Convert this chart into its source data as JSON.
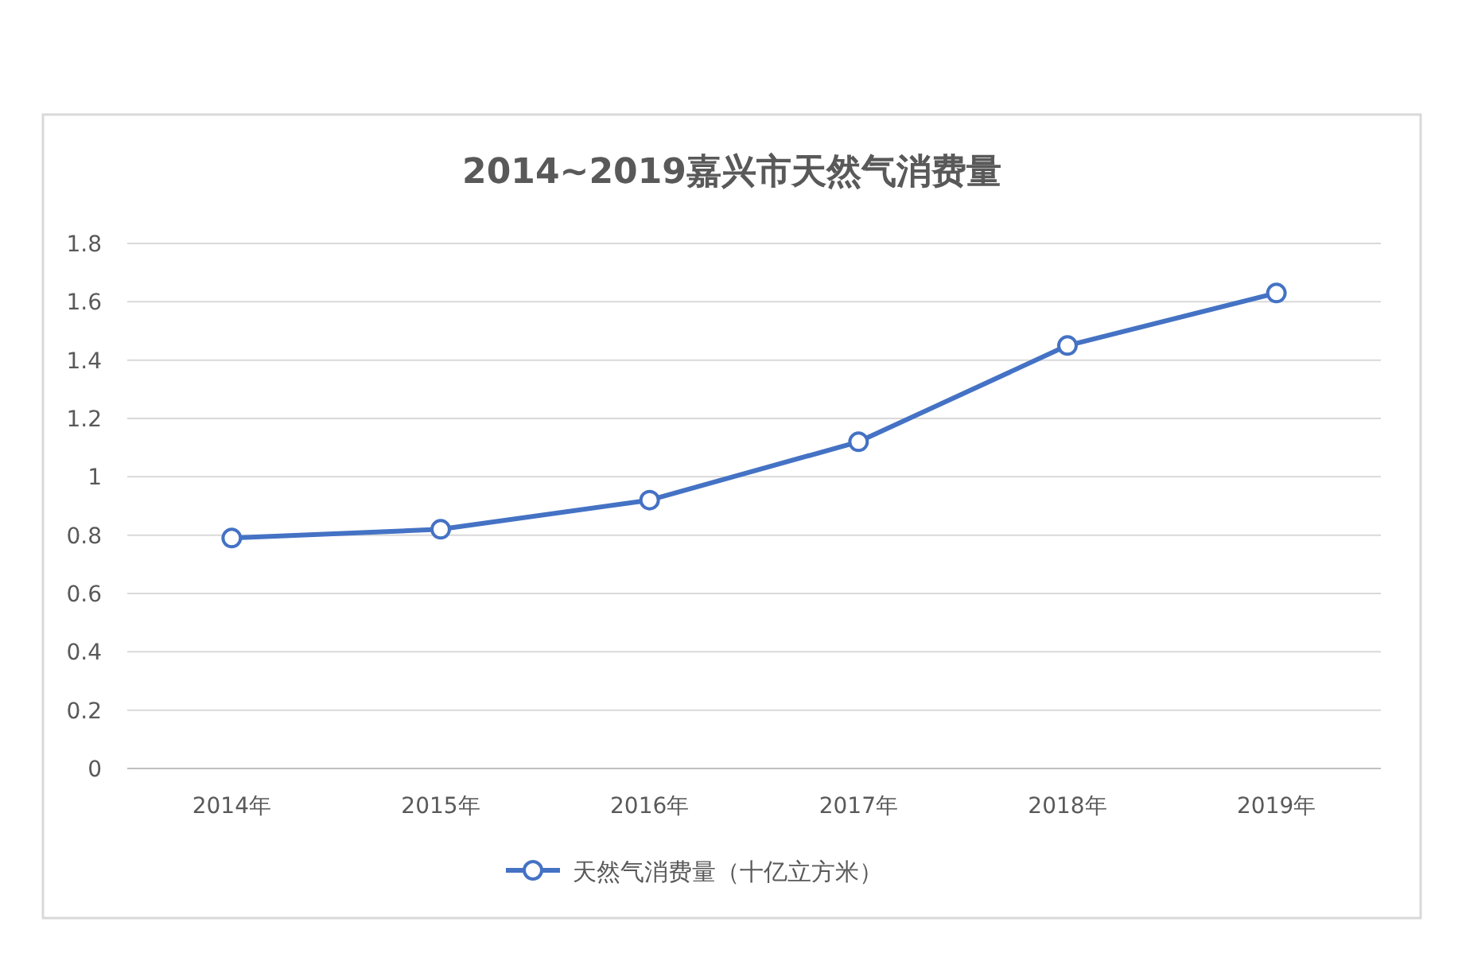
{
  "chart_data": {
    "type": "line",
    "title": "2014~2019嘉兴市天然气消费量",
    "categories": [
      "2014年",
      "2015年",
      "2016年",
      "2017年",
      "2018年",
      "2019年"
    ],
    "series": [
      {
        "name": "天然气消费量（十亿立方米）",
        "color": "#4472c4",
        "values": [
          0.79,
          0.82,
          0.92,
          1.12,
          1.45,
          1.63
        ]
      }
    ],
    "ylim": [
      0,
      1.8
    ],
    "yticks": [
      0,
      0.2,
      0.4,
      0.6,
      0.8,
      1,
      1.2,
      1.4,
      1.6,
      1.8
    ],
    "grid": "y",
    "legend": "bottom",
    "marker": "circle",
    "line_style": "solid"
  }
}
